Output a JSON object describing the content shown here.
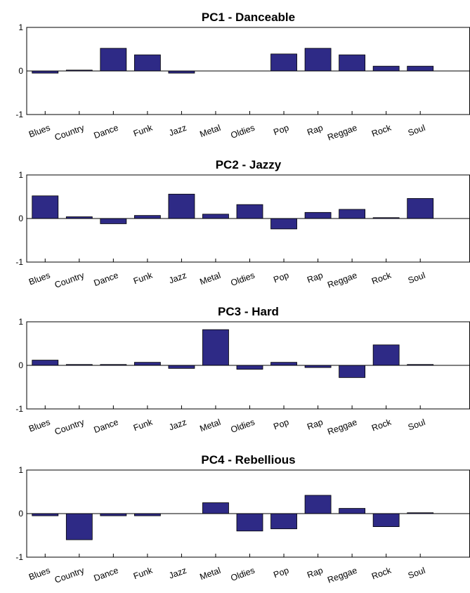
{
  "chart_data": [
    {
      "type": "bar",
      "title": "PC1 - Danceable",
      "categories": [
        "Blues",
        "Country",
        "Dance",
        "Funk",
        "Jazz",
        "Metal",
        "Oldies",
        "Pop",
        "Rap",
        "Reggae",
        "Rock",
        "Soul"
      ],
      "values": [
        -0.05,
        0.02,
        0.52,
        0.37,
        -0.05,
        0.0,
        0.0,
        0.39,
        0.52,
        0.37,
        0.11,
        0.11
      ],
      "ylim": [
        -1,
        1
      ],
      "yticks": [
        "1",
        "0",
        "-1"
      ],
      "grid": false,
      "bar_color": "#2e2a86"
    },
    {
      "type": "bar",
      "title": "PC2 - Jazzy",
      "categories": [
        "Blues",
        "Country",
        "Dance",
        "Funk",
        "Jazz",
        "Metal",
        "Oldies",
        "Pop",
        "Rap",
        "Reggae",
        "Rock",
        "Soul"
      ],
      "values": [
        0.52,
        0.04,
        -0.12,
        0.07,
        0.56,
        0.1,
        0.32,
        -0.24,
        0.14,
        0.21,
        0.02,
        0.46
      ],
      "ylim": [
        -1,
        1
      ],
      "yticks": [
        "1",
        "0",
        "-1"
      ],
      "grid": false,
      "bar_color": "#2e2a86"
    },
    {
      "type": "bar",
      "title": "PC3 - Hard",
      "categories": [
        "Blues",
        "Country",
        "Dance",
        "Funk",
        "Jazz",
        "Metal",
        "Oldies",
        "Pop",
        "Rap",
        "Reggae",
        "Rock",
        "Soul"
      ],
      "values": [
        0.12,
        0.02,
        0.02,
        0.07,
        -0.07,
        0.82,
        -0.09,
        0.07,
        -0.05,
        -0.28,
        0.47,
        0.02
      ],
      "ylim": [
        -1,
        1
      ],
      "yticks": [
        "1",
        "0",
        "-1"
      ],
      "grid": false,
      "bar_color": "#2e2a86"
    },
    {
      "type": "bar",
      "title": "PC4 - Rebellious",
      "categories": [
        "Blues",
        "Country",
        "Dance",
        "Funk",
        "Jazz",
        "Metal",
        "Oldies",
        "Pop",
        "Rap",
        "Reggae",
        "Rock",
        "Soul"
      ],
      "values": [
        -0.05,
        -0.6,
        -0.05,
        -0.05,
        0.0,
        0.25,
        -0.4,
        -0.35,
        0.42,
        0.12,
        -0.3,
        0.02
      ],
      "ylim": [
        -1,
        1
      ],
      "yticks": [
        "1",
        "0",
        "-1"
      ],
      "grid": false,
      "bar_color": "#2e2a86"
    }
  ]
}
